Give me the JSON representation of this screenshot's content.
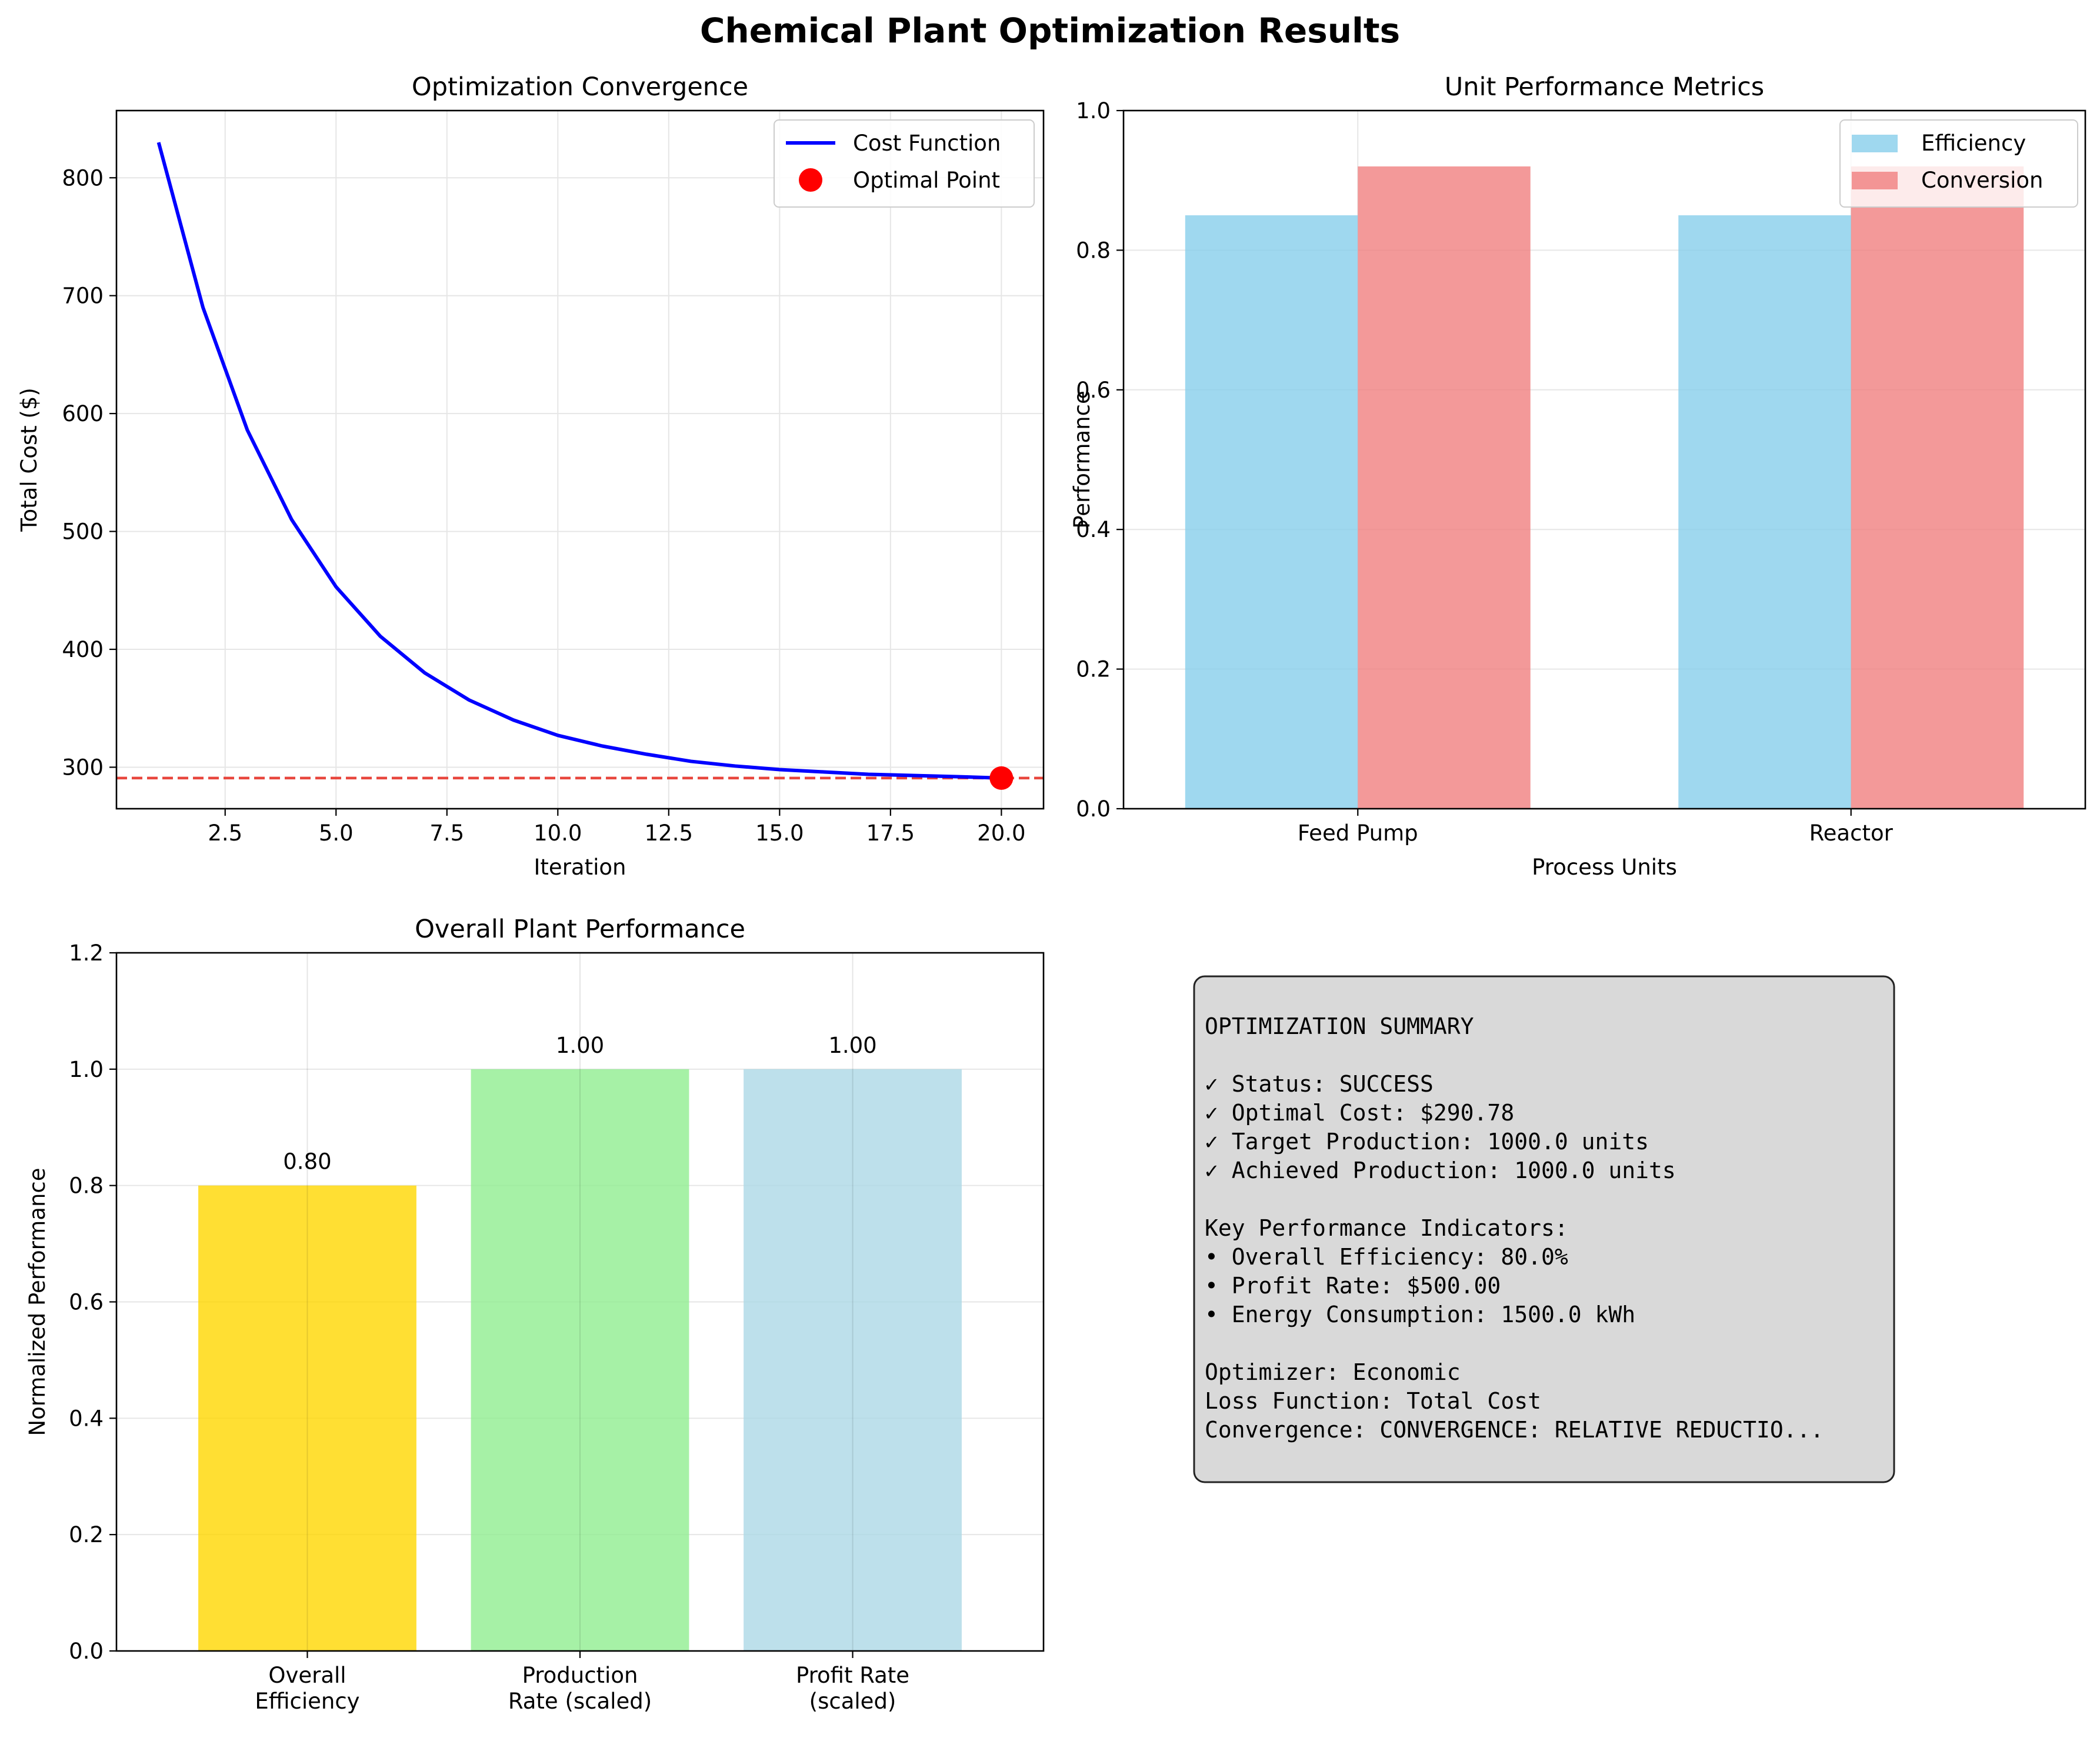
{
  "figure": {
    "title": "Chemical Plant Optimization Results"
  },
  "chart_data": [
    {
      "id": "convergence",
      "type": "line",
      "title": "Optimization Convergence",
      "xlabel": "Iteration",
      "ylabel": "Total Cost ($)",
      "xlim": [
        0.05,
        20.95
      ],
      "ylim": [
        264.8,
        857.0
      ],
      "xticks": [
        2.5,
        5.0,
        7.5,
        10.0,
        12.5,
        15.0,
        17.5,
        20.0
      ],
      "xtick_labels": [
        "2.5",
        "5.0",
        "7.5",
        "10.0",
        "12.5",
        "15.0",
        "17.5",
        "20.0"
      ],
      "yticks": [
        300,
        400,
        500,
        600,
        700,
        800
      ],
      "ytick_labels": [
        "300",
        "400",
        "500",
        "600",
        "700",
        "800"
      ],
      "grid": true,
      "legend_position": "upper right",
      "series": [
        {
          "name": "Cost Function",
          "kind": "line",
          "color": "#0000ff",
          "x": [
            1,
            2,
            3,
            4,
            5,
            6,
            7,
            8,
            9,
            10,
            11,
            12,
            13,
            14,
            15,
            16,
            17,
            18,
            19,
            20
          ],
          "y": [
            830,
            690,
            586,
            510,
            453,
            411,
            380,
            357,
            340,
            327,
            318,
            311,
            305,
            301,
            298,
            296,
            294,
            293,
            292,
            290.78
          ]
        },
        {
          "name": "Optimal Point",
          "kind": "scatter",
          "color": "#ff0000",
          "x": [
            20
          ],
          "y": [
            290.78
          ]
        }
      ],
      "reference_line": {
        "y": 290.78,
        "color": "#e8473e",
        "style": "dashed"
      }
    },
    {
      "id": "unit_metrics",
      "type": "bar",
      "title": "Unit Performance Metrics",
      "xlabel": "Process Units",
      "ylabel": "Performance",
      "categories": [
        "Feed Pump",
        "Reactor"
      ],
      "ylim": [
        0,
        1.0
      ],
      "yticks": [
        0.0,
        0.2,
        0.4,
        0.6,
        0.8,
        1.0
      ],
      "ytick_labels": [
        "0.0",
        "0.2",
        "0.4",
        "0.6",
        "0.8",
        "1.0"
      ],
      "grid": true,
      "legend_position": "upper right",
      "series": [
        {
          "name": "Efficiency",
          "color": "#87ceeb",
          "values": [
            0.85,
            0.85
          ]
        },
        {
          "name": "Conversion",
          "color": "#f08080",
          "values": [
            0.92,
            0.92
          ]
        }
      ]
    },
    {
      "id": "overall",
      "type": "bar",
      "title": "Overall Plant Performance",
      "xlabel": "",
      "ylabel": "Normalized Performance",
      "categories": [
        "Overall\nEfficiency",
        "Production\nRate (scaled)",
        "Profit Rate\n(scaled)"
      ],
      "ylim": [
        0,
        1.2
      ],
      "yticks": [
        0.0,
        0.2,
        0.4,
        0.6,
        0.8,
        1.0,
        1.2
      ],
      "ytick_labels": [
        "0.0",
        "0.2",
        "0.4",
        "0.6",
        "0.8",
        "1.0",
        "1.2"
      ],
      "grid": true,
      "values": [
        0.8,
        1.0,
        1.0
      ],
      "value_labels": [
        "0.80",
        "1.00",
        "1.00"
      ],
      "colors": [
        "#ffd700",
        "#90ee90",
        "#add8e6"
      ]
    }
  ],
  "summary": {
    "lines": [
      "OPTIMIZATION SUMMARY",
      "",
      "✓ Status: SUCCESS",
      "✓ Optimal Cost: $290.78",
      "✓ Target Production: 1000.0 units",
      "✓ Achieved Production: 1000.0 units",
      "",
      "Key Performance Indicators:",
      "• Overall Efficiency: 80.0%",
      "• Profit Rate: $500.00",
      "• Energy Consumption: 1500.0 kWh",
      "",
      "Optimizer: Economic",
      "Loss Function: Total Cost",
      "Convergence: CONVERGENCE: RELATIVE REDUCTIO..."
    ]
  }
}
